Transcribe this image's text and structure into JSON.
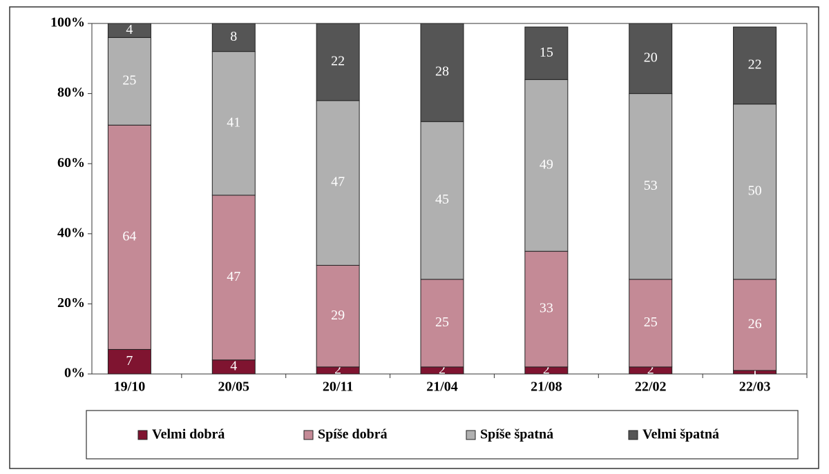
{
  "chart_data": {
    "type": "stacked_bar",
    "categories": [
      "19/10",
      "20/05",
      "20/11",
      "21/04",
      "21/08",
      "22/02",
      "22/03"
    ],
    "series": [
      {
        "name": "Velmi dobrá",
        "color": "#7f1430",
        "values": [
          7,
          4,
          2,
          2,
          2,
          2,
          1
        ]
      },
      {
        "name": "Spíše dobrá",
        "color": "#c48a96",
        "values": [
          64,
          47,
          29,
          25,
          33,
          25,
          26
        ]
      },
      {
        "name": "Spíše špatná",
        "color": "#b0b0b0",
        "values": [
          25,
          41,
          47,
          45,
          49,
          53,
          50
        ]
      },
      {
        "name": "Velmi špatná",
        "color": "#555555",
        "values": [
          4,
          8,
          22,
          28,
          15,
          20,
          22
        ]
      }
    ],
    "ylim": [
      0,
      100
    ],
    "yticks": [
      {
        "value": 0,
        "label": "0%"
      },
      {
        "value": 20,
        "label": "20%"
      },
      {
        "value": 40,
        "label": "40%"
      },
      {
        "value": 60,
        "label": "60%"
      },
      {
        "value": 80,
        "label": "80%"
      },
      {
        "value": 100,
        "label": "100%"
      }
    ],
    "legend": "bottom"
  }
}
